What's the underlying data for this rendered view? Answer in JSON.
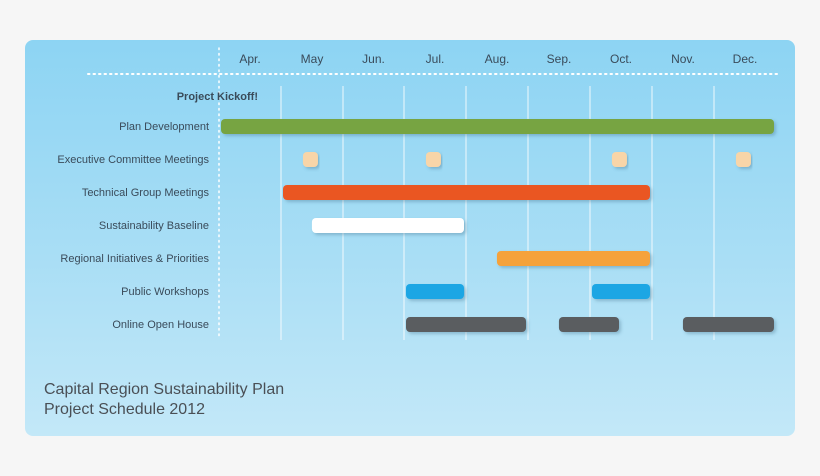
{
  "footer": {
    "title": "Capital Region Sustainability Plan",
    "subtitle": "Project Schedule 2012"
  },
  "colors": {
    "panel": "#9fdaf4",
    "grid": "#ffffff",
    "label": "#3a4b5a"
  },
  "chart_data": {
    "type": "gantt",
    "title": "Capital Region Sustainability Plan",
    "subtitle": "Project Schedule 2012",
    "months": [
      "Apr.",
      "May",
      "Jun.",
      "Jul.",
      "Aug.",
      "Sep.",
      "Oct.",
      "Nov.",
      "Dec."
    ],
    "milestone": "Project Kickoff!",
    "grid": true,
    "tasks": [
      {
        "name": "Plan Development",
        "color": "#77a443",
        "segments": [
          {
            "start": "Apr. 1",
            "end": "Dec. 31"
          }
        ]
      },
      {
        "name": "Executive Committee Meetings",
        "color": "#f8d5a8",
        "type": "milestones",
        "dates": [
          "May 15",
          "Jul. 15",
          "Oct. 15",
          "Dec. 15"
        ]
      },
      {
        "name": "Technical Group Meetings",
        "color": "#ea5724",
        "segments": [
          {
            "start": "May 1",
            "end": "Oct. 31"
          }
        ]
      },
      {
        "name": "Sustainability Baseline",
        "color": "#ffffff",
        "segments": [
          {
            "start": "May 15",
            "end": "Jul. 31"
          }
        ]
      },
      {
        "name": "Regional Initiatives & Priorities",
        "color": "#f5a23b",
        "segments": [
          {
            "start": "Aug. 15",
            "end": "Oct. 31"
          }
        ]
      },
      {
        "name": "Public Workshops",
        "color": "#1aa6e4",
        "segments": [
          {
            "start": "Jul. 1",
            "end": "Jul. 31"
          },
          {
            "start": "Oct. 1",
            "end": "Oct. 31"
          }
        ]
      },
      {
        "name": "Online Open House",
        "color": "#5a5d61",
        "segments": [
          {
            "start": "Jul. 1",
            "end": "Aug. 31"
          },
          {
            "start": "Sep. 15",
            "end": "Oct. 15"
          },
          {
            "start": "Nov. 15",
            "end": "Dec. 31"
          }
        ]
      }
    ]
  }
}
